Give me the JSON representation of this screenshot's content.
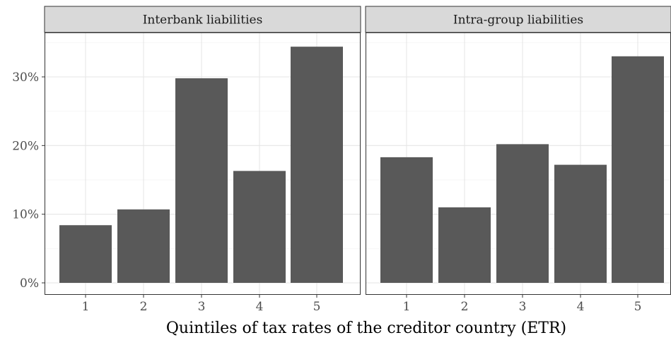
{
  "chart_data": {
    "type": "bar",
    "xlabel": "Quintiles of tax rates of the creditor country (ETR)",
    "ylabel": "",
    "ylim": [
      0,
      36.5
    ],
    "yticks": [
      0,
      10,
      20,
      30
    ],
    "ytick_labels": [
      "0%",
      "10%",
      "20%",
      "30%"
    ],
    "categories": [
      "1",
      "2",
      "3",
      "4",
      "5"
    ],
    "grid": true,
    "bar_color": "#595959",
    "panel_border_color": "#333333",
    "strip_fill": "#d9d9d9",
    "panels": [
      {
        "title": "Interbank liabilities",
        "values": [
          8.4,
          10.7,
          29.8,
          16.3,
          34.4
        ]
      },
      {
        "title": "Intra-group liabilities",
        "values": [
          18.3,
          11.0,
          20.2,
          17.2,
          33.0
        ]
      }
    ]
  }
}
